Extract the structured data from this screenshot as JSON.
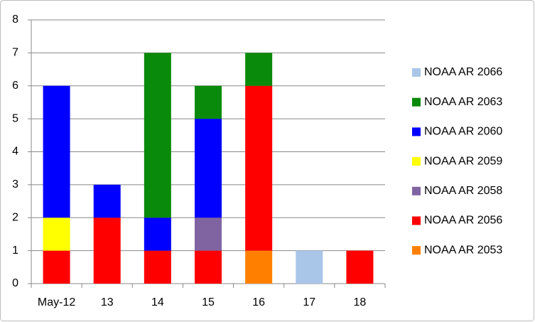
{
  "chart_data": {
    "type": "stacked_bar",
    "categories": [
      "May-12",
      "13",
      "14",
      "15",
      "16",
      "17",
      "18"
    ],
    "series": [
      {
        "name": "NOAA AR 2053",
        "color": "#ff8000",
        "values": [
          0,
          0,
          0,
          0,
          1,
          0,
          0
        ]
      },
      {
        "name": "NOAA AR 2056",
        "color": "#ff0000",
        "values": [
          1,
          2,
          1,
          1,
          5,
          0,
          1
        ]
      },
      {
        "name": "NOAA AR 2058",
        "color": "#8064a2",
        "values": [
          0,
          0,
          0,
          1,
          0,
          0,
          0
        ]
      },
      {
        "name": "NOAA AR 2059",
        "color": "#ffff00",
        "values": [
          1,
          0,
          0,
          0,
          0,
          0,
          0
        ]
      },
      {
        "name": "NOAA AR 2060",
        "color": "#0000ff",
        "values": [
          4,
          1,
          1,
          3,
          0,
          0,
          0
        ]
      },
      {
        "name": "NOAA AR 2063",
        "color": "#0a8a0a",
        "values": [
          0,
          0,
          5,
          1,
          1,
          0,
          0
        ]
      },
      {
        "name": "NOAA AR 2066",
        "color": "#a9c6e8",
        "values": [
          0,
          0,
          0,
          0,
          0,
          1,
          0
        ]
      }
    ],
    "ylim": [
      0,
      8
    ],
    "yticks": [
      0,
      1,
      2,
      3,
      4,
      5,
      6,
      7,
      8
    ],
    "grid": true,
    "legend": "right"
  }
}
